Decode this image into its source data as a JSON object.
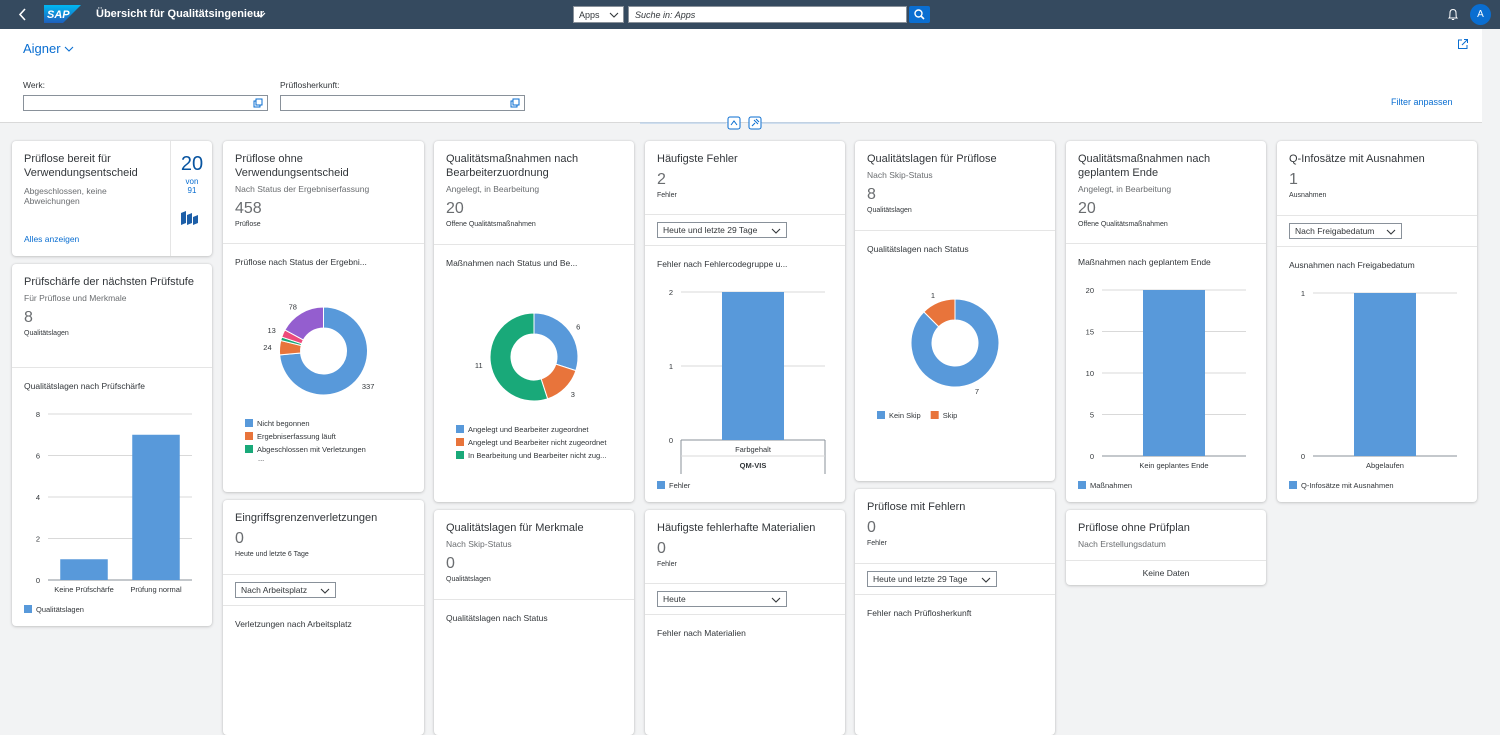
{
  "header": {
    "logo": "SAP",
    "title": "Übersicht für Qualitätsingenieur",
    "search_scope": "Apps",
    "search_placeholder": "Suche in: Apps",
    "avatar": "A"
  },
  "filter_bar": {
    "variant": "Aigner",
    "fields": [
      {
        "label": "Werk:"
      },
      {
        "label": "Prüflosherkunft:"
      }
    ],
    "adapt_filters": "Filter anpassen"
  },
  "cards": [
    {
      "title": "Prüflose bereit für Verwendungsentscheid",
      "subtitle": "Abgeschlossen, keine Abweichungen",
      "link": "Alles anzeigen",
      "kpi": 20,
      "kpi_of": "von",
      "kpi_total": 91
    },
    {
      "title": "Prüfschärfe der nächsten Prüfstufe",
      "subtitle": "Für Prüflose und Merkmale",
      "kpi": 8,
      "kpi_unit": "Qualitätslagen",
      "chart_title": "Qualitätslagen nach Prüfschärfe",
      "chart": {
        "type": "bar",
        "categories": [
          "Keine Prüfschärfe",
          "Prüfung normal"
        ],
        "series": [
          {
            "name": "Qualitätslagen",
            "color": "#5899da",
            "values": [
              1,
              7
            ]
          }
        ],
        "ylim": [
          0,
          8
        ],
        "yticks": [
          0,
          2,
          4,
          6,
          8
        ],
        "grid": true
      }
    },
    {
      "title": "Prüflose ohne Verwendungsentscheid",
      "subtitle": "Nach Status der Ergebniserfassung",
      "kpi": 458,
      "kpi_unit": "Prüflose",
      "chart_title": "Prüflose nach Status der Ergebni...",
      "chart": {
        "type": "donut",
        "categories": [
          "Nicht begonnen",
          "Ergebniserfassung läuft",
          "Abgeschlossen mit Verletzungen",
          null,
          null
        ],
        "values": [
          337,
          24,
          6,
          13,
          78
        ],
        "colors": [
          "#5899da",
          "#e8743b",
          "#19a979",
          "#ed4a7b",
          "#945ecf"
        ],
        "legend_more": "..."
      }
    },
    {
      "title": "Eingriffsgrenzenverletzungen",
      "kpi": 0,
      "kpi_unit": "Heute und letzte 6 Tage",
      "dropdown": "Nach Arbeitsplatz",
      "chart_title": "Verletzungen nach Arbeitsplatz"
    },
    {
      "title": "Qualitätsmaßnahmen nach Bearbeiterzuordnung",
      "subtitle": "Angelegt, in Bearbeitung",
      "kpi": 20,
      "kpi_unit": "Offene Qualitätsmaßnahmen",
      "chart_title": "Maßnahmen nach Status und Be...",
      "chart": {
        "type": "donut",
        "categories": [
          "Angelegt und Bearbeiter zugeordnet",
          "Angelegt und Bearbeiter nicht zugeordnet",
          "In Bearbeitung und Bearbeiter nicht zug..."
        ],
        "values": [
          6,
          3,
          11
        ],
        "colors": [
          "#5899da",
          "#e8743b",
          "#19a979"
        ]
      }
    },
    {
      "title": "Qualitätslagen für Merkmale",
      "subtitle": "Nach Skip-Status",
      "kpi": 0,
      "kpi_unit": "Qualitätslagen",
      "chart_title": "Qualitätslagen nach Status"
    },
    {
      "title": "Häufigste Fehler",
      "kpi": 2,
      "kpi_unit": "Fehler",
      "dropdown": "Heute und letzte 29 Tage",
      "chart_title": "Fehler nach Fehlercodegruppe u...",
      "chart": {
        "type": "bar",
        "categories": [
          "Farbgehalt"
        ],
        "group_label": "QM-VIS",
        "series": [
          {
            "name": "Fehler",
            "color": "#5899da",
            "values": [
              2
            ]
          }
        ],
        "ylim": [
          0,
          2
        ],
        "yticks": [
          0,
          1,
          2
        ],
        "grid": true
      }
    },
    {
      "title": "Häufigste fehlerhafte Materialien",
      "kpi": 0,
      "kpi_unit": "Fehler",
      "dropdown": "Heute",
      "chart_title": "Fehler nach Materialien"
    },
    {
      "title": "Qualitätslagen für Prüflose",
      "subtitle": "Nach Skip-Status",
      "kpi": 8,
      "kpi_unit": "Qualitätslagen",
      "chart_title": "Qualitätslagen nach Status",
      "chart": {
        "type": "donut",
        "categories": [
          "Kein Skip",
          "Skip"
        ],
        "values": [
          7,
          1
        ],
        "colors": [
          "#5899da",
          "#e8743b"
        ]
      }
    },
    {
      "title": "Prüflose mit Fehlern",
      "kpi": 0,
      "kpi_unit": "Fehler",
      "dropdown": "Heute und letzte 29 Tage",
      "chart_title": "Fehler nach Prüflosherkunft"
    },
    {
      "title": "Qualitätsmaßnahmen nach geplantem Ende",
      "subtitle": "Angelegt, in Bearbeitung",
      "kpi": 20,
      "kpi_unit": "Offene Qualitätsmaßnahmen",
      "chart_title": "Maßnahmen nach geplantem Ende",
      "chart": {
        "type": "bar",
        "categories": [
          "Kein geplantes Ende"
        ],
        "series": [
          {
            "name": "Maßnahmen",
            "color": "#5899da",
            "values": [
              20
            ]
          }
        ],
        "ylim": [
          0,
          20
        ],
        "yticks": [
          0,
          5,
          10,
          15,
          20
        ],
        "grid": true
      }
    },
    {
      "title": "Prüflose ohne Prüfplan",
      "subtitle": "Nach Erstellungsdatum",
      "no_data": "Keine Daten"
    },
    {
      "title": "Q-Infosätze mit Ausnahmen",
      "kpi": 1,
      "kpi_unit": "Ausnahmen",
      "dropdown": "Nach Freigabedatum",
      "chart_title": "Ausnahmen nach Freigabedatum",
      "chart": {
        "type": "bar",
        "categories": [
          "Abgelaufen"
        ],
        "series": [
          {
            "name": "Q-Infosätze mit Ausnahmen",
            "color": "#5899da",
            "values": [
              1
            ]
          }
        ],
        "ylim": [
          0,
          1
        ],
        "yticks": [
          0,
          1
        ],
        "grid": true
      }
    }
  ]
}
